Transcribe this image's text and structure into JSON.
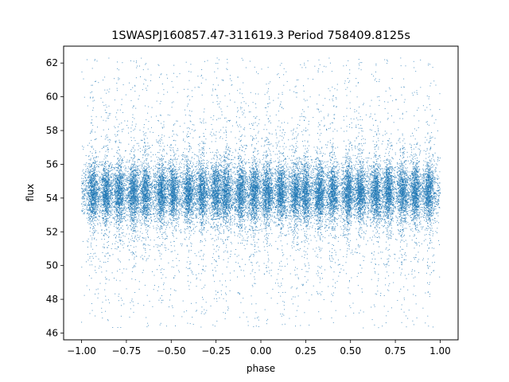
{
  "chart_data": {
    "type": "scatter",
    "title": "1SWASPJ160857.47-311619.3 Period 758409.8125s",
    "xlabel": "phase",
    "ylabel": "flux",
    "xlim": [
      -1.1,
      1.1
    ],
    "ylim": [
      45.6,
      63.0
    ],
    "x_ticks": [
      -1.0,
      -0.75,
      -0.5,
      -0.25,
      0.0,
      0.25,
      0.5,
      0.75,
      1.0
    ],
    "x_tick_labels": [
      "−1.00",
      "−0.75",
      "−0.50",
      "−0.25",
      "0.00",
      "0.25",
      "0.50",
      "0.75",
      "1.00"
    ],
    "y_ticks": [
      46,
      48,
      50,
      52,
      54,
      56,
      58,
      60,
      62
    ],
    "y_tick_labels": [
      "46",
      "48",
      "50",
      "52",
      "54",
      "56",
      "58",
      "60",
      "62"
    ],
    "grid": false,
    "marker_color": "#1f77b4",
    "distribution": {
      "phase_range": [
        -1.0,
        1.0
      ],
      "flux_median": 54.3,
      "flux_core_range": [
        52.5,
        56.2
      ],
      "flux_full_range": [
        46.3,
        62.3
      ],
      "point_count_estimate": 30000,
      "symmetry": "mirrored about phase 0"
    }
  }
}
